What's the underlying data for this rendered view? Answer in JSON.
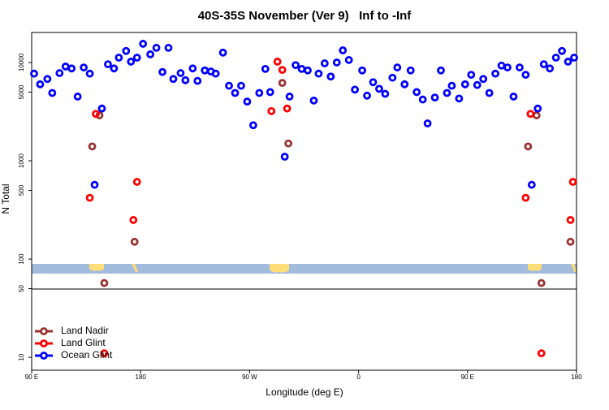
{
  "chart_data": {
    "type": "scatter",
    "title": "40S-35S November (Ver 9)   Inf to -Inf",
    "x_label": "Longitude (deg E)",
    "y_label": "N Total",
    "log_y": true,
    "xlim": [
      90,
      540
    ],
    "ylim": [
      7.4,
      20200
    ],
    "xticks": [
      {
        "value": 90,
        "label": "90 E"
      },
      {
        "value": 180,
        "label": "180"
      },
      {
        "value": 270,
        "label": "90 W"
      },
      {
        "value": 360,
        "label": "0"
      },
      {
        "value": 450,
        "label": "90 E"
      },
      {
        "value": 540,
        "label": "180"
      }
    ],
    "yticks": [
      10,
      50,
      100,
      500,
      1000,
      5000,
      10000
    ],
    "legend": "bottom-left",
    "series": [
      {
        "name": "Land Nadir",
        "color": "#993333",
        "x": [
          140,
          146,
          175,
          150,
          297,
          302,
          500,
          507,
          535,
          511
        ],
        "values": [
          1400,
          2900,
          150,
          57,
          6200,
          1500,
          1400,
          2900,
          150,
          57
        ]
      },
      {
        "name": "Land Glint",
        "color": "#ff0000",
        "x": [
          138,
          143,
          177,
          174,
          150,
          288,
          293,
          297,
          301,
          498,
          502,
          537,
          535,
          511
        ],
        "values": [
          420,
          3000,
          610,
          250,
          11,
          3200,
          10200,
          8400,
          3400,
          420,
          3000,
          610,
          250,
          11
        ]
      },
      {
        "name": "Ocean Glint",
        "color": "#0000ff",
        "x": [
          92,
          97,
          103,
          107,
          113,
          118,
          123,
          128,
          133,
          138,
          142,
          148,
          153,
          158,
          162,
          168,
          172,
          177,
          182,
          188,
          193,
          198,
          203,
          207,
          213,
          217,
          223,
          227,
          233,
          238,
          242,
          248,
          253,
          258,
          263,
          268,
          273,
          278,
          283,
          287,
          299,
          303,
          308,
          313,
          318,
          323,
          327,
          332,
          337,
          342,
          347,
          352,
          357,
          363,
          367,
          372,
          377,
          382,
          388,
          392,
          398,
          403,
          408,
          413,
          417,
          423,
          428,
          433,
          437,
          443,
          448,
          453,
          458,
          463,
          468,
          473,
          478,
          483,
          488,
          493,
          498,
          503,
          508,
          513,
          518,
          523,
          528,
          533,
          538
        ],
        "values": [
          7700,
          6000,
          6800,
          4900,
          7800,
          9100,
          8700,
          4500,
          8900,
          7700,
          570,
          3400,
          9600,
          8700,
          11200,
          13100,
          10200,
          11200,
          15500,
          12100,
          14100,
          8000,
          14100,
          6800,
          7800,
          6600,
          8700,
          6500,
          8300,
          8100,
          7700,
          12600,
          5800,
          4900,
          5800,
          4000,
          2300,
          4900,
          8600,
          5000,
          1100,
          4500,
          9400,
          8600,
          8300,
          4100,
          7700,
          9800,
          7200,
          10000,
          13300,
          10600,
          5300,
          8300,
          4600,
          6300,
          5400,
          4800,
          7000,
          8900,
          6000,
          8300,
          5000,
          4200,
          2400,
          4400,
          8300,
          4900,
          5800,
          4300,
          6000,
          7500,
          5900,
          6800,
          4900,
          7700,
          9300,
          8900,
          4500,
          8900,
          7500,
          570,
          3400,
          9600,
          8700,
          11200,
          13100,
          10200,
          11200
        ]
      }
    ]
  }
}
